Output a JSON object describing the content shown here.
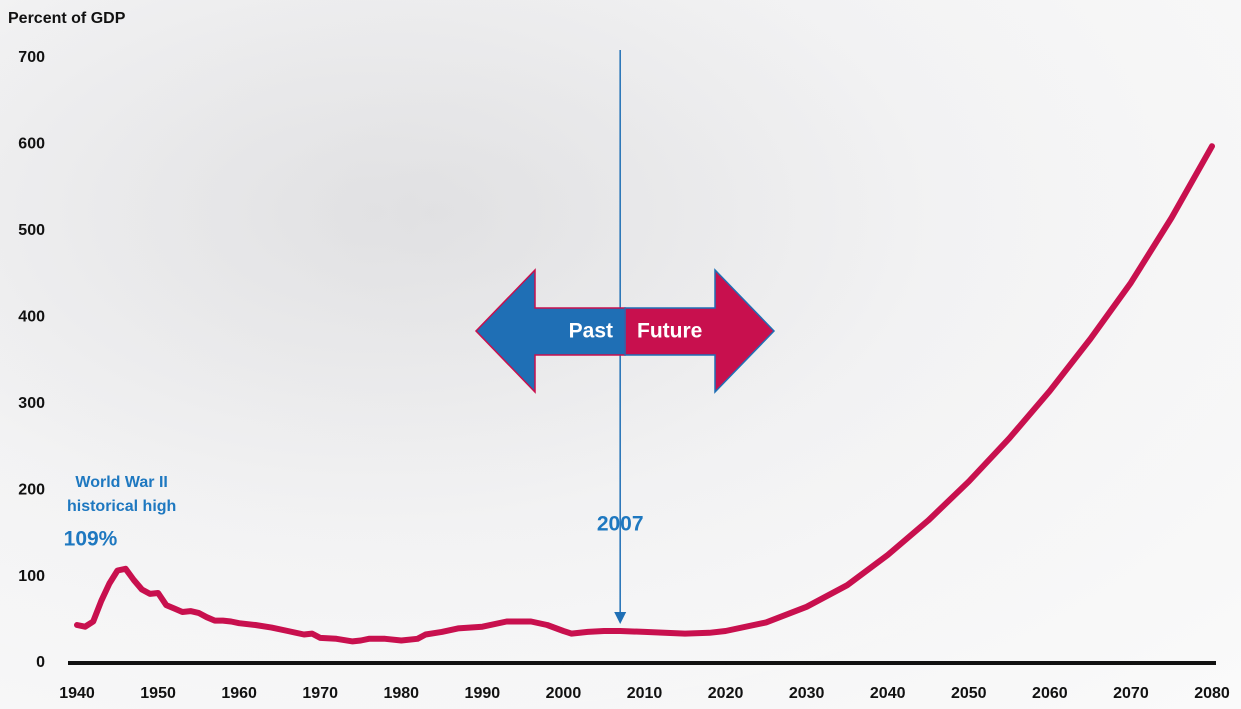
{
  "chart_data": {
    "type": "line",
    "y_label": "Percent of GDP",
    "x": [
      1940,
      1941,
      1942,
      1943,
      1944,
      1945,
      1946,
      1947,
      1948,
      1949,
      1950,
      1951,
      1952,
      1953,
      1954,
      1955,
      1956,
      1957,
      1958,
      1959,
      1960,
      1962,
      1964,
      1966,
      1968,
      1969,
      1970,
      1972,
      1974,
      1975,
      1976,
      1978,
      1980,
      1982,
      1983,
      1985,
      1987,
      1990,
      1993,
      1996,
      1998,
      2000,
      2001,
      2003,
      2005,
      2007,
      2010,
      2015,
      2018,
      2020,
      2025,
      2030,
      2035,
      2040,
      2045,
      2050,
      2055,
      2060,
      2065,
      2070,
      2075,
      2080
    ],
    "values": [
      44,
      42,
      48,
      72,
      92,
      107,
      109,
      96,
      85,
      80,
      81,
      67,
      63,
      59,
      60,
      58,
      53,
      49,
      49,
      48,
      46,
      44,
      41,
      37,
      33,
      34,
      29,
      28,
      25,
      26,
      28,
      28,
      26,
      28,
      33,
      36,
      40,
      42,
      48,
      48,
      44,
      37,
      34,
      36,
      37,
      37,
      36,
      34,
      35,
      37,
      47,
      65,
      90,
      125,
      165,
      210,
      260,
      315,
      375,
      440,
      515,
      598
    ],
    "color": "#c8104e",
    "xlim": [
      1940,
      2080
    ],
    "xticks": [
      1940,
      1950,
      1960,
      1970,
      1980,
      1990,
      2000,
      2010,
      2020,
      2030,
      2040,
      2050,
      2060,
      2070,
      2080
    ],
    "ylim": [
      0,
      700
    ],
    "yticks": [
      0,
      100,
      200,
      300,
      400,
      500,
      600,
      700
    ],
    "peak_note": "World War II historical high",
    "peak": {
      "x": 1946,
      "value": 109,
      "label": "109%"
    },
    "divider": 2007,
    "past_label": "Past",
    "future_label": "Future"
  }
}
